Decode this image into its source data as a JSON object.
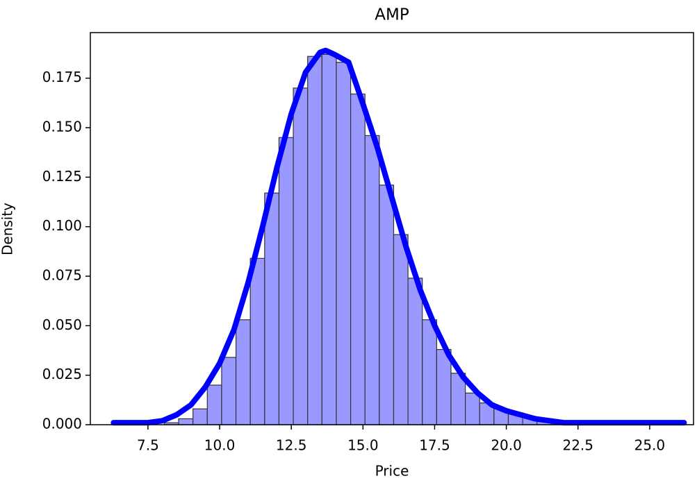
{
  "chart_data": {
    "type": "histogram",
    "title": "AMP",
    "x_label": "Price",
    "y_label": "Density",
    "bins": [
      8.07,
      8.57,
      9.07,
      9.57,
      10.07,
      10.57,
      11.07,
      11.57,
      12.07,
      12.57,
      13.07,
      13.57,
      14.07,
      14.57,
      15.07,
      15.57,
      16.07,
      16.57,
      17.07,
      17.57,
      18.07,
      18.57,
      19.07,
      19.57,
      20.07,
      20.57,
      21.07,
      21.57,
      22.07,
      22.57,
      23.07
    ],
    "values": [
      0.001,
      0.003,
      0.008,
      0.02,
      0.034,
      0.053,
      0.084,
      0.117,
      0.145,
      0.17,
      0.186,
      0.187,
      0.183,
      0.167,
      0.146,
      0.121,
      0.096,
      0.074,
      0.053,
      0.038,
      0.026,
      0.016,
      0.011,
      0.008,
      0.006,
      0.004,
      0.003,
      0.002,
      0.001,
      0.001
    ],
    "color": "#9999ff",
    "edge_color": "#333333",
    "kde_x": [
      6.3,
      7,
      7.5,
      8,
      8.5,
      9,
      9.5,
      10,
      10.5,
      11,
      11.5,
      12,
      12.5,
      13,
      13.5,
      13.7,
      14,
      14.5,
      15,
      15.5,
      16,
      16.5,
      17,
      17.5,
      18,
      18.5,
      19,
      19.5,
      20,
      20.5,
      21,
      22,
      23,
      24,
      26.2
    ],
    "kde_values": [
      0.001,
      0.001,
      0.001,
      0.002,
      0.005,
      0.01,
      0.019,
      0.031,
      0.048,
      0.072,
      0.1,
      0.13,
      0.157,
      0.178,
      0.188,
      0.189,
      0.187,
      0.183,
      0.162,
      0.14,
      0.115,
      0.09,
      0.068,
      0.05,
      0.035,
      0.024,
      0.016,
      0.01,
      0.007,
      0.005,
      0.003,
      0.001,
      0.001,
      0.001,
      0.001
    ],
    "kde_color": "#0000ff",
    "xlim": [
      5.49,
      26.53
    ],
    "ylim": [
      0,
      0.198
    ],
    "xticks": [
      7.5,
      {
        "value": 10,
        "label": "10.0"
      },
      12.5,
      {
        "value": 15,
        "label": "15.0"
      },
      17.5,
      {
        "value": 20,
        "label": "20.0"
      },
      22.5,
      {
        "value": 25,
        "label": "25.0"
      }
    ],
    "yticks": [
      {
        "value": 0,
        "label": "0.000"
      },
      {
        "value": 0.025,
        "label": "0.025"
      },
      {
        "value": 0.05,
        "label": "0.050"
      },
      {
        "value": 0.075,
        "label": "0.075"
      },
      {
        "value": 0.1,
        "label": "0.100"
      },
      {
        "value": 0.125,
        "label": "0.125"
      },
      {
        "value": 0.15,
        "label": "0.150"
      },
      {
        "value": 0.175,
        "label": "0.175"
      }
    ]
  }
}
